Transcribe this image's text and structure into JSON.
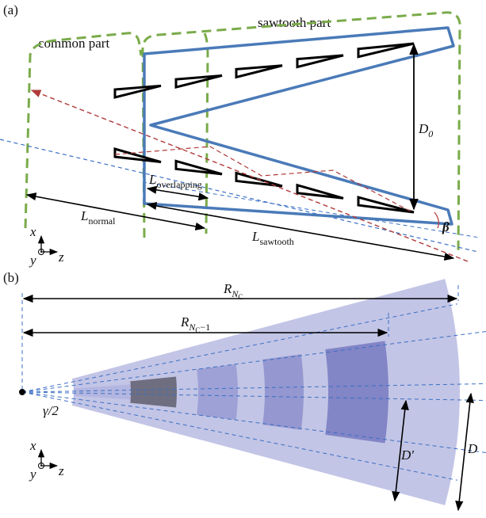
{
  "panel_a": {
    "label": "(a)",
    "sawtooth_part": "sawtooth part",
    "common_part": "common part",
    "d0": {
      "symbol": "D",
      "subscript": "0"
    },
    "l_overlapping": {
      "symbol": "L",
      "subscript": "overlapping"
    },
    "l_normal": {
      "symbol": "L",
      "subscript": "normal"
    },
    "l_sawtooth": {
      "symbol": "L",
      "subscript": "sawtooth"
    },
    "beta": "β",
    "axes": {
      "x": "x",
      "y": "y",
      "z": "z"
    }
  },
  "panel_b": {
    "label": "(b)",
    "r_nc": {
      "symbol": "R",
      "subscript": "N",
      "subsubscript": "C"
    },
    "r_nc_minus_1": {
      "symbol": "R",
      "subscript": "N",
      "subsubscript": "C",
      "suffix": "−1"
    },
    "gamma_half": "γ/2",
    "d_prime": "D′",
    "d": "D",
    "axes": {
      "x": "x",
      "y": "y",
      "z": "z"
    }
  }
}
